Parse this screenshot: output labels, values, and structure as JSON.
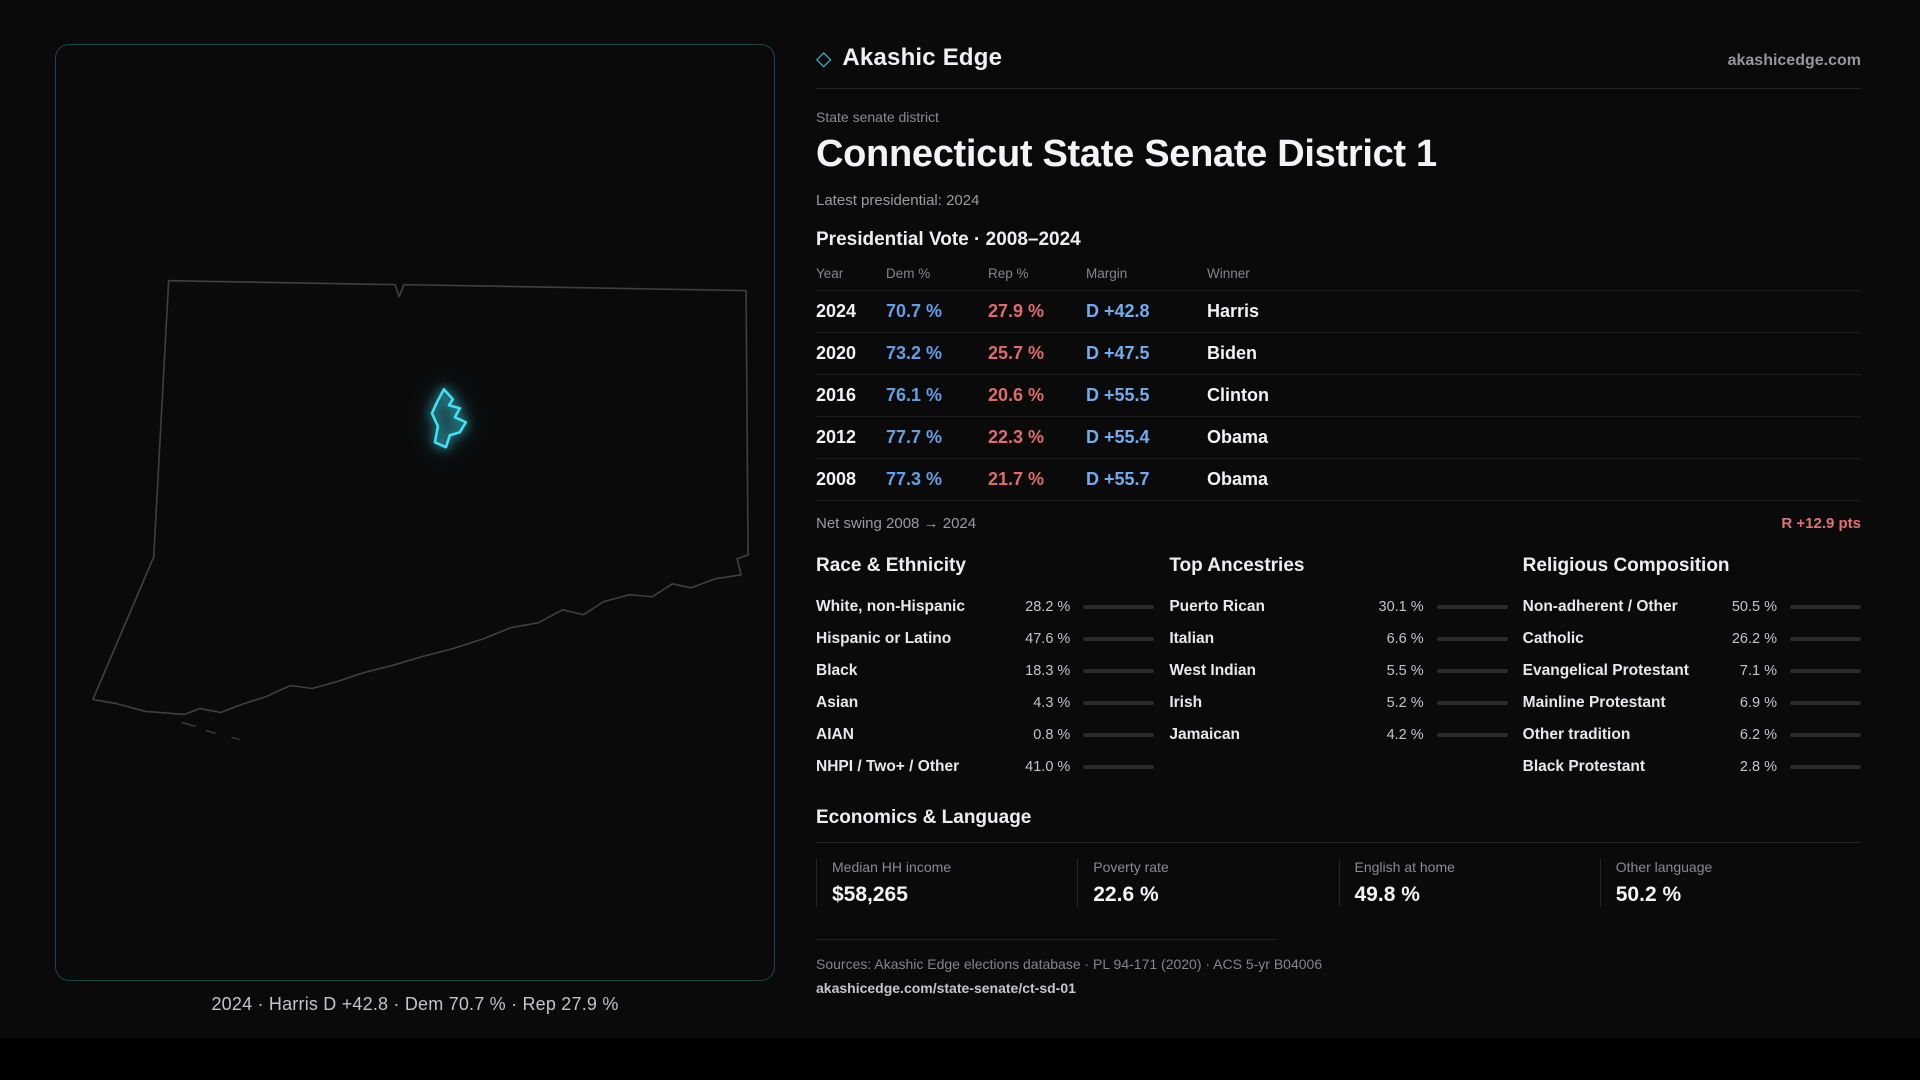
{
  "brand": {
    "diamond": "◇",
    "name": "Akashic Edge",
    "domain": "akashicedge.com"
  },
  "header": {
    "kicker": "State senate district",
    "title": "Connecticut State Senate District 1",
    "latest": "Latest presidential: 2024"
  },
  "map": {
    "caption": "2024 · Harris D +42.8 · Dem 70.7 % · Rep 27.9 %"
  },
  "vote": {
    "title": "Presidential Vote · 2008–2024",
    "columns": [
      "Year",
      "Dem %",
      "Rep %",
      "Margin",
      "Winner"
    ],
    "rows": [
      {
        "year": "2024",
        "dem": "70.7 %",
        "rep": "27.9 %",
        "margin": "D +42.8",
        "winner": "Harris"
      },
      {
        "year": "2020",
        "dem": "73.2 %",
        "rep": "25.7 %",
        "margin": "D +47.5",
        "winner": "Biden"
      },
      {
        "year": "2016",
        "dem": "76.1 %",
        "rep": "20.6 %",
        "margin": "D +55.5",
        "winner": "Clinton"
      },
      {
        "year": "2012",
        "dem": "77.7 %",
        "rep": "22.3 %",
        "margin": "D +55.4",
        "winner": "Obama"
      },
      {
        "year": "2008",
        "dem": "77.3 %",
        "rep": "21.7 %",
        "margin": "D +55.7",
        "winner": "Obama"
      }
    ],
    "net_swing_label": "Net swing 2008 → 2024",
    "net_swing_value": "R +12.9 pts"
  },
  "demographics": {
    "race": {
      "title": "Race & Ethnicity",
      "rows": [
        {
          "label": "White, non-Hispanic",
          "value": "28.2 %",
          "pct": 28.2
        },
        {
          "label": "Hispanic or Latino",
          "value": "47.6 %",
          "pct": 47.6
        },
        {
          "label": "Black",
          "value": "18.3 %",
          "pct": 18.3
        },
        {
          "label": "Asian",
          "value": "4.3 %",
          "pct": 4.3
        },
        {
          "label": "AIAN",
          "value": "0.8 %",
          "pct": 0.8
        },
        {
          "label": "NHPI / Two+ / Other",
          "value": "41.0 %",
          "pct": 41.0
        }
      ]
    },
    "ancestries": {
      "title": "Top Ancestries",
      "rows": [
        {
          "label": "Puerto Rican",
          "value": "30.1 %",
          "pct": 30.1
        },
        {
          "label": "Italian",
          "value": "6.6 %",
          "pct": 6.6
        },
        {
          "label": "West Indian",
          "value": "5.5 %",
          "pct": 5.5
        },
        {
          "label": "Irish",
          "value": "5.2 %",
          "pct": 5.2
        },
        {
          "label": "Jamaican",
          "value": "4.2 %",
          "pct": 4.2
        }
      ]
    },
    "religion": {
      "title": "Religious Composition",
      "rows": [
        {
          "label": "Non-adherent / Other",
          "value": "50.5 %",
          "pct": 50.5
        },
        {
          "label": "Catholic",
          "value": "26.2 %",
          "pct": 26.2
        },
        {
          "label": "Evangelical Protestant",
          "value": "7.1 %",
          "pct": 7.1
        },
        {
          "label": "Mainline Protestant",
          "value": "6.9 %",
          "pct": 6.9
        },
        {
          "label": "Other tradition",
          "value": "6.2 %",
          "pct": 6.2
        },
        {
          "label": "Black Protestant",
          "value": "2.8 %",
          "pct": 2.8
        }
      ]
    }
  },
  "economics": {
    "title": "Economics & Language",
    "stats": [
      {
        "label": "Median HH income",
        "value": "$58,265"
      },
      {
        "label": "Poverty rate",
        "value": "22.6 %"
      },
      {
        "label": "English at home",
        "value": "49.8 %"
      },
      {
        "label": "Other language",
        "value": "50.2 %"
      }
    ]
  },
  "footer": {
    "sources": "Sources: Akashic Edge elections database · PL 94-171 (2020) · ACS 5-yr B04006",
    "url": "akashicedge.com/state-senate/ct-sd-01"
  }
}
